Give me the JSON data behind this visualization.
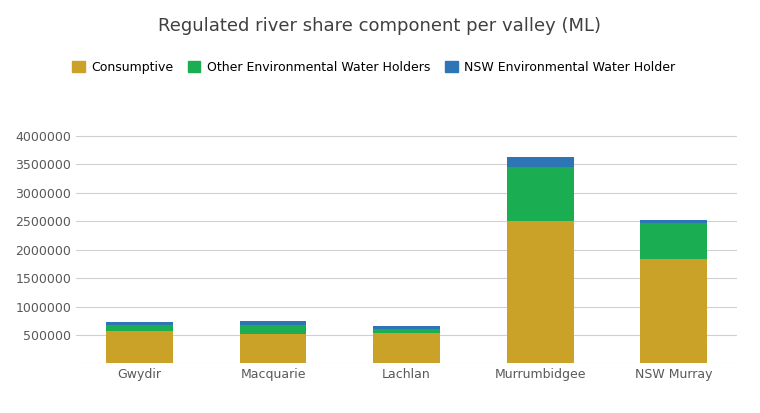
{
  "title": "Regulated river share component per valley (ML)",
  "categories": [
    "Gwydir",
    "Macquarie",
    "Lachlan",
    "Murrumbidgee",
    "NSW Murray"
  ],
  "series": [
    {
      "name": "Consumptive",
      "color": "#C9A227",
      "values": [
        570000,
        510000,
        530000,
        2500000,
        1840000
      ]
    },
    {
      "name": "Other Environmental Water Holders",
      "color": "#1BAD52",
      "values": [
        105000,
        165000,
        80000,
        950000,
        620000
      ]
    },
    {
      "name": "NSW Environmental Water Holder",
      "color": "#2E75B6",
      "values": [
        50000,
        70000,
        45000,
        185000,
        65000
      ]
    }
  ],
  "ylim": [
    0,
    4500000
  ],
  "yticks": [
    0,
    500000,
    1000000,
    1500000,
    2000000,
    2500000,
    3000000,
    3500000,
    4000000
  ],
  "background_color": "#FFFFFF",
  "grid_color": "#D0D0D0",
  "title_fontsize": 13,
  "legend_fontsize": 9,
  "tick_fontsize": 9
}
